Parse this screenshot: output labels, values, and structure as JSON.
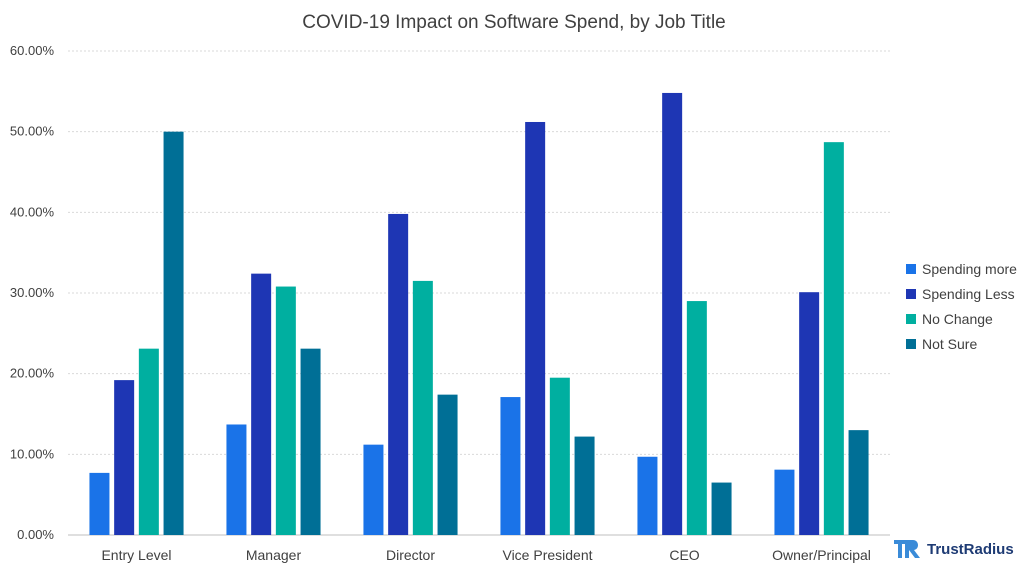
{
  "chart_data": {
    "type": "bar",
    "title": "COVID-19 Impact on Software Spend, by Job Title",
    "xlabel": "",
    "ylabel": "",
    "ylim": [
      0,
      0.6
    ],
    "y_ticks": [
      "0.00%",
      "10.00%",
      "20.00%",
      "30.00%",
      "40.00%",
      "50.00%",
      "60.00%"
    ],
    "y_tick_values": [
      0,
      0.1,
      0.2,
      0.3,
      0.4,
      0.5,
      0.6
    ],
    "grid": true,
    "legend_position": "right",
    "categories": [
      "Entry Level",
      "Manager",
      "Director",
      "Vice President",
      "CEO",
      "Owner/Principal"
    ],
    "series": [
      {
        "name": "Spending more",
        "color": "#1a73e8",
        "values": [
          0.077,
          0.137,
          0.112,
          0.171,
          0.097,
          0.081
        ]
      },
      {
        "name": "Spending Less",
        "color": "#1e36b4",
        "values": [
          0.192,
          0.324,
          0.398,
          0.512,
          0.548,
          0.301
        ]
      },
      {
        "name": "No Change",
        "color": "#00afa0",
        "values": [
          0.231,
          0.308,
          0.315,
          0.195,
          0.29,
          0.487
        ]
      },
      {
        "name": "Not Sure",
        "color": "#006f96",
        "values": [
          0.5,
          0.231,
          0.174,
          0.122,
          0.065,
          0.13
        ]
      }
    ]
  },
  "brand": {
    "name": "TrustRadius",
    "logo_text": "TR"
  }
}
